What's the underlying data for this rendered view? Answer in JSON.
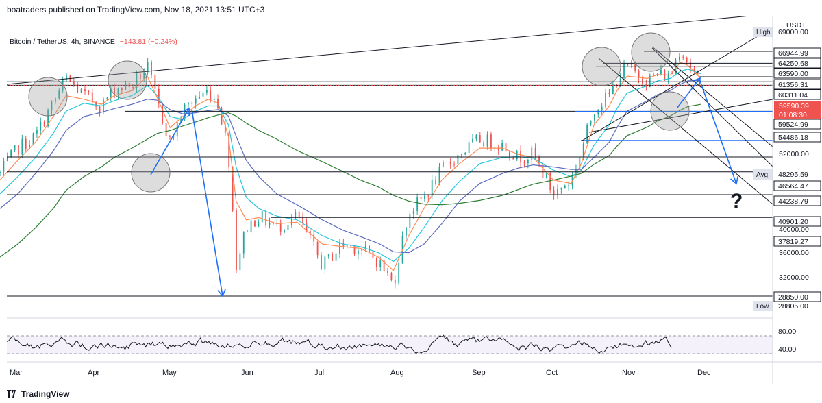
{
  "header": {
    "published": "boatraders published on TradingView.com, Nov 18, 2021 13:51 UTC+3",
    "symbol": "Bitcoin / TetherUS, 4h, BINANCE",
    "change": "−143.81 (−0.24%)"
  },
  "footer": {
    "brand": "TradingView"
  },
  "chart_data": {
    "type": "line",
    "title": "Bitcoin / TetherUS, 4h, BINANCE",
    "currency": "USDT",
    "x_labels": [
      "Mar",
      "Apr",
      "May",
      "Jun",
      "Jul",
      "Aug",
      "Sep",
      "Oct",
      "Nov",
      "Dec"
    ],
    "price_scale_ticks": [
      52000,
      40000,
      36000,
      32000
    ],
    "price_series": {
      "x": [
        "2021-02-15",
        "2021-02-22",
        "2021-03-01",
        "2021-03-08",
        "2021-03-13",
        "2021-03-20",
        "2021-03-27",
        "2021-04-01",
        "2021-04-08",
        "2021-04-14",
        "2021-04-18",
        "2021-04-23",
        "2021-04-28",
        "2021-05-03",
        "2021-05-08",
        "2021-05-12",
        "2021-05-16",
        "2021-05-19",
        "2021-05-23",
        "2021-05-28",
        "2021-06-04",
        "2021-06-12",
        "2021-06-22",
        "2021-06-30",
        "2021-07-07",
        "2021-07-14",
        "2021-07-20",
        "2021-07-26",
        "2021-08-01",
        "2021-08-08",
        "2021-08-15",
        "2021-08-23",
        "2021-09-01",
        "2021-09-07",
        "2021-09-13",
        "2021-09-21",
        "2021-09-28",
        "2021-10-02",
        "2021-10-07",
        "2021-10-13",
        "2021-10-16",
        "2021-10-20",
        "2021-10-28",
        "2021-11-01",
        "2021-11-06",
        "2021-11-10",
        "2021-11-13",
        "2021-11-18"
      ],
      "y": [
        44000,
        48000,
        50000,
        56000,
        61000,
        57500,
        55500,
        59000,
        59500,
        63500,
        56000,
        49000,
        54500,
        57000,
        58500,
        56000,
        47000,
        32000,
        36500,
        38000,
        36500,
        38000,
        32000,
        34500,
        34000,
        32500,
        30000,
        38500,
        40500,
        44500,
        47000,
        49500,
        48500,
        46500,
        47000,
        41000,
        43000,
        47500,
        55000,
        57500,
        61000,
        63500,
        60500,
        62000,
        61300,
        68000,
        64500,
        59590
      ]
    },
    "sma_series": [
      {
        "color": "#ff8a50",
        "y": [
          43000,
          46000,
          49000,
          53500,
          57500,
          56800,
          55800,
          57500,
          58500,
          61500,
          57000,
          51500,
          53500,
          55500,
          56800,
          56000,
          50000,
          40000,
          37500,
          37800,
          37000,
          37200,
          34500,
          34200,
          34000,
          33000,
          31500,
          35500,
          39000,
          43000,
          45500,
          48000,
          48000,
          47000,
          46500,
          43000,
          42500,
          45500,
          52000,
          55500,
          58500,
          61500,
          61000,
          61800,
          61700,
          64500,
          63800,
          61000
        ]
      },
      {
        "color": "#26c6da",
        "y": [
          41000,
          43500,
          46500,
          50500,
          54500,
          56000,
          55500,
          56500,
          57500,
          59500,
          57500,
          53500,
          53000,
          54500,
          55500,
          55500,
          52000,
          45000,
          40500,
          39000,
          38000,
          37500,
          35500,
          34500,
          34200,
          33500,
          32500,
          34000,
          36500,
          40000,
          42800,
          45500,
          46500,
          46600,
          46400,
          44500,
          43500,
          44500,
          48500,
          52000,
          55000,
          58000,
          59500,
          60500,
          61000,
          62500,
          63000,
          62000
        ]
      },
      {
        "color": "#5c6bc0",
        "y": [
          39000,
          41000,
          44000,
          47500,
          51000,
          53500,
          54300,
          55000,
          55800,
          56800,
          56600,
          54800,
          54000,
          54200,
          54600,
          54800,
          53600,
          50000,
          46000,
          43500,
          41000,
          39500,
          37500,
          36200,
          35400,
          34600,
          33600,
          33500,
          34500,
          37000,
          40000,
          42500,
          44000,
          44800,
          45300,
          45000,
          44600,
          44600,
          46500,
          49000,
          51500,
          54500,
          56500,
          57700,
          58500,
          59800,
          60500,
          60600
        ]
      },
      {
        "color": "#2e7d32",
        "y": [
          33000,
          34500,
          36500,
          39000,
          41500,
          43500,
          45000,
          46500,
          48000,
          49500,
          50500,
          51000,
          51800,
          52500,
          53300,
          53800,
          54200,
          53600,
          52300,
          51000,
          49500,
          47600,
          45800,
          44300,
          43000,
          42000,
          40800,
          40000,
          39600,
          39500,
          39700,
          40100,
          40800,
          41600,
          42400,
          43000,
          43600,
          44000,
          45400,
          46800,
          48300,
          50100,
          51600,
          52700,
          53600,
          54700,
          55400,
          55800
        ]
      }
    ],
    "price_labels": [
      {
        "text": "Avg",
        "value": "48295.59",
        "kind": "muted-tag"
      },
      {
        "text": "Low",
        "value": "28805.00",
        "kind": "muted-tag"
      },
      {
        "text": "High",
        "value": "69000.00",
        "kind": "muted-tag"
      },
      {
        "value": "66944.99",
        "kind": "box"
      },
      {
        "value": "64250.68",
        "kind": "box"
      },
      {
        "value": "63590.00",
        "kind": "box"
      },
      {
        "value": "61356.31",
        "kind": "box"
      },
      {
        "value": "60311.04",
        "kind": "box"
      },
      {
        "value": "59590.39",
        "kind": "current"
      },
      {
        "value": "01:08:30",
        "kind": "current-timer"
      },
      {
        "value": "59524.99",
        "kind": "box"
      },
      {
        "value": "54486.18",
        "kind": "box"
      },
      {
        "value": "46564.47",
        "kind": "box"
      },
      {
        "value": "44238.79",
        "kind": "box"
      },
      {
        "value": "40901.20",
        "kind": "box"
      },
      {
        "value": "37819.27",
        "kind": "box"
      },
      {
        "value": "28850.00",
        "kind": "box"
      }
    ],
    "annotation_question": "?",
    "rsi": {
      "levels": [
        80,
        40
      ],
      "labels": [
        "80.00",
        "40.00"
      ]
    },
    "colors": {
      "candle_up": "#26a69a",
      "candle_down": "#ef5350",
      "current_price": "#ef5350",
      "arrows": "#1e6ff5",
      "highlight_circles": "#9e9e9e"
    }
  }
}
